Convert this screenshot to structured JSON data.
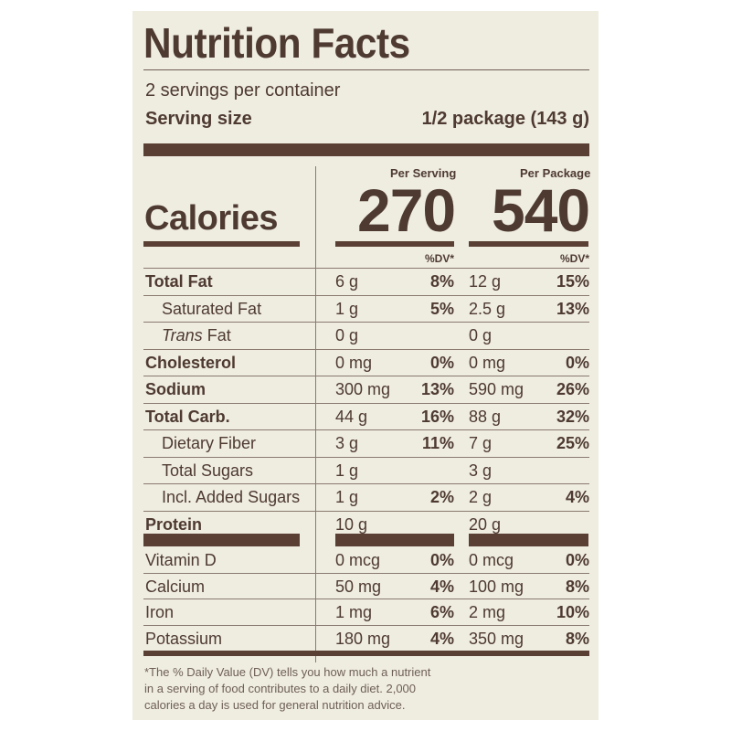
{
  "title": "Nutrition Facts",
  "servings_per_container": "2 servings per container",
  "serving_size_label": "Serving size",
  "serving_size_value": "1/2 package (143 g)",
  "calories_label": "Calories",
  "columns": [
    {
      "header": "Per Serving",
      "calories": "270",
      "dv_header": "%DV*"
    },
    {
      "header": "Per Package",
      "calories": "540",
      "dv_header": "%DV*"
    }
  ],
  "nutrients": [
    {
      "name": "Total Fat",
      "bold": true,
      "indent": false,
      "serving": {
        "amount": "6 g",
        "dv": "8%"
      },
      "package": {
        "amount": "12 g",
        "dv": "15%"
      }
    },
    {
      "name": "Saturated Fat",
      "bold": false,
      "indent": true,
      "serving": {
        "amount": "1 g",
        "dv": "5%"
      },
      "package": {
        "amount": "2.5 g",
        "dv": "13%"
      }
    },
    {
      "name": "Fat",
      "name_italic_prefix": "Trans",
      "bold": false,
      "indent": true,
      "serving": {
        "amount": "0 g",
        "dv": ""
      },
      "package": {
        "amount": "0 g",
        "dv": ""
      }
    },
    {
      "name": "Cholesterol",
      "bold": true,
      "indent": false,
      "serving": {
        "amount": "0 mg",
        "dv": "0%"
      },
      "package": {
        "amount": "0 mg",
        "dv": "0%"
      }
    },
    {
      "name": "Sodium",
      "bold": true,
      "indent": false,
      "serving": {
        "amount": "300 mg",
        "dv": "13%"
      },
      "package": {
        "amount": "590 mg",
        "dv": "26%"
      }
    },
    {
      "name": "Total Carb.",
      "bold": true,
      "indent": false,
      "serving": {
        "amount": "44 g",
        "dv": "16%"
      },
      "package": {
        "amount": "88 g",
        "dv": "32%"
      }
    },
    {
      "name": "Dietary Fiber",
      "bold": false,
      "indent": true,
      "serving": {
        "amount": "3 g",
        "dv": "11%"
      },
      "package": {
        "amount": "7 g",
        "dv": "25%"
      }
    },
    {
      "name": "Total Sugars",
      "bold": false,
      "indent": true,
      "serving": {
        "amount": "1 g",
        "dv": ""
      },
      "package": {
        "amount": "3 g",
        "dv": ""
      }
    },
    {
      "name": "Incl. Added Sugars",
      "bold": false,
      "indent": true,
      "serving": {
        "amount": "1 g",
        "dv": "2%"
      },
      "package": {
        "amount": "2 g",
        "dv": "4%"
      }
    },
    {
      "name": "Protein",
      "bold": true,
      "indent": false,
      "serving": {
        "amount": "10 g",
        "dv": ""
      },
      "package": {
        "amount": "20 g",
        "dv": ""
      }
    }
  ],
  "vitamins": [
    {
      "name": "Vitamin D",
      "serving": {
        "amount": "0 mcg",
        "dv": "0%"
      },
      "package": {
        "amount": "0 mcg",
        "dv": "0%"
      }
    },
    {
      "name": "Calcium",
      "serving": {
        "amount": "50 mg",
        "dv": "4%"
      },
      "package": {
        "amount": "100 mg",
        "dv": "8%"
      }
    },
    {
      "name": "Iron",
      "serving": {
        "amount": "1 mg",
        "dv": "6%"
      },
      "package": {
        "amount": "2 mg",
        "dv": "10%"
      }
    },
    {
      "name": "Potassium",
      "serving": {
        "amount": "180 mg",
        "dv": "4%"
      },
      "package": {
        "amount": "350 mg",
        "dv": "8%"
      }
    }
  ],
  "footnote": [
    "*The % Daily Value (DV) tells you how much a nutrient",
    "in a serving of food contributes to a daily diet. 2,000",
    "calories a day is used for general nutrition advice."
  ],
  "colors": {
    "ink": "#4e3a31",
    "bar": "#5a4034",
    "background": "#efece0"
  }
}
